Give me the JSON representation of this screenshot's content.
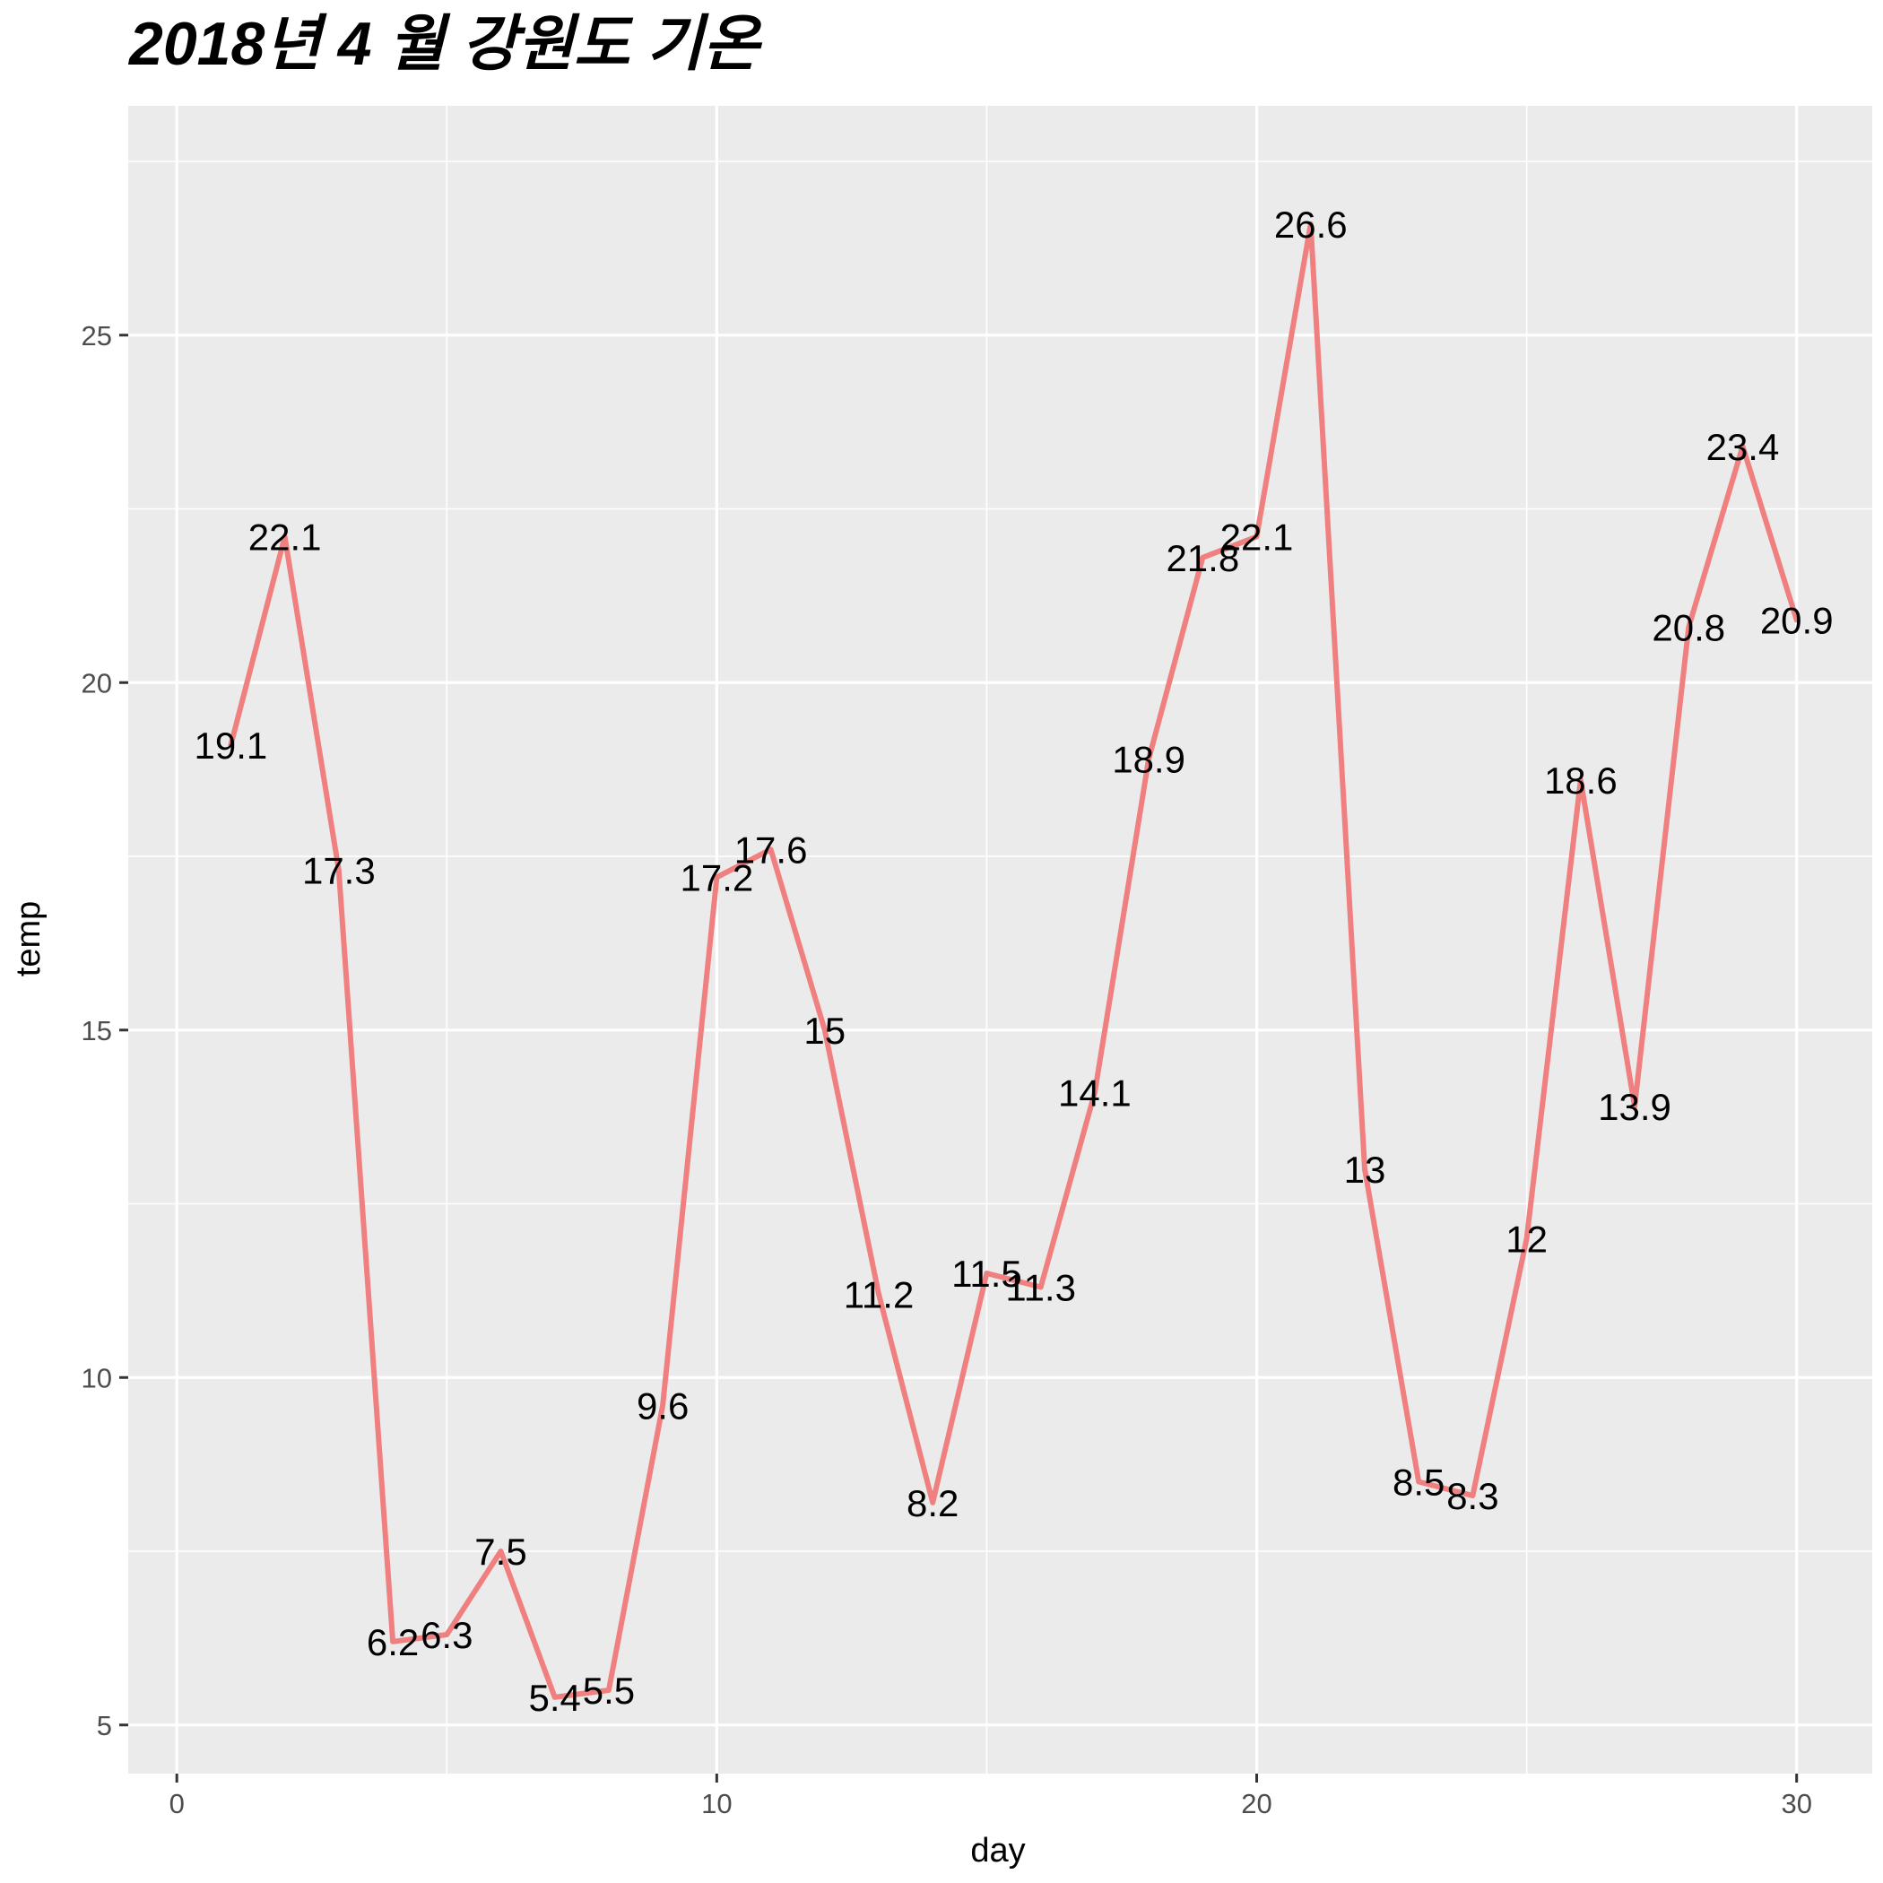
{
  "chart_data": {
    "type": "line",
    "title": "2018년 4 월 강원도 기온",
    "xlabel": "day",
    "ylabel": "temp",
    "xlim": [
      -0.9,
      31.4
    ],
    "ylim": [
      4.3,
      28.3
    ],
    "x_ticks": [
      0,
      10,
      20,
      30
    ],
    "y_ticks": [
      5,
      10,
      15,
      20,
      25
    ],
    "grid": true,
    "background": "#ebebeb",
    "grid_color": "#ffffff",
    "line_color": "#f07f7f",
    "series": [
      {
        "x": [
          1,
          2,
          3,
          4,
          5,
          6,
          7,
          8,
          9,
          10,
          11,
          12,
          13,
          14,
          15,
          16,
          17,
          18,
          19,
          20,
          21,
          22,
          23,
          24,
          25,
          26,
          27,
          28,
          29,
          30
        ],
        "values": [
          19.1,
          22.1,
          17.3,
          6.2,
          6.3,
          7.5,
          5.4,
          5.5,
          9.6,
          17.2,
          17.6,
          15,
          11.2,
          8.2,
          11.5,
          11.3,
          14.1,
          18.9,
          21.8,
          22.1,
          26.6,
          13,
          8.5,
          8.3,
          12,
          18.6,
          13.9,
          20.8,
          23.4,
          20.9
        ],
        "labels": [
          "19.1",
          "22.1",
          "17.3",
          "6.2",
          "6.3",
          "7.5",
          "5.4",
          "5.5",
          "9.6",
          "17.2",
          "17.6",
          "15",
          "11.2",
          "8.2",
          "11.5",
          "11.3",
          "14.1",
          "18.9",
          "21.8",
          "22.1",
          "26.6",
          "13",
          "8.5",
          "8.3",
          "12",
          "18.6",
          "13.9",
          "20.8",
          "23.4",
          "20.9"
        ]
      }
    ]
  }
}
